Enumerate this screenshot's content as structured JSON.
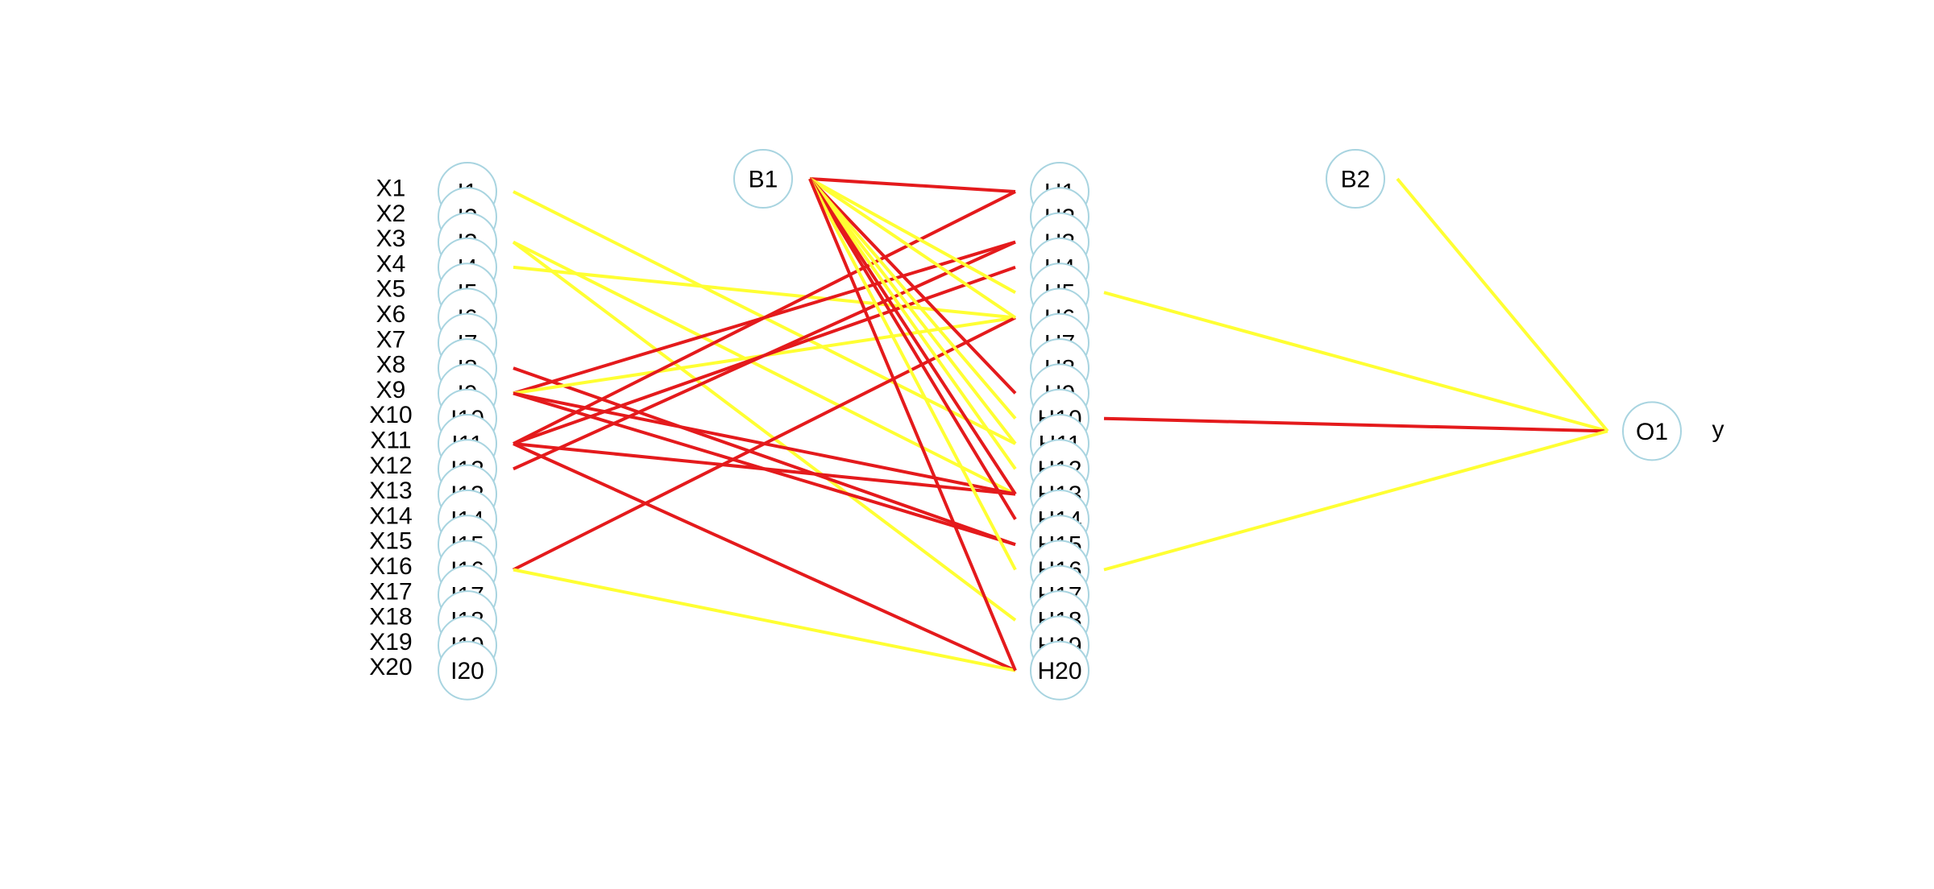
{
  "colors": {
    "positive": "#ffff33",
    "negative": "#e41a1c",
    "node_stroke": "#a8d4e0"
  },
  "input_variables": [
    "X1",
    "X2",
    "X3",
    "X4",
    "X5",
    "X6",
    "X7",
    "X8",
    "X9",
    "X10",
    "X11",
    "X12",
    "X13",
    "X14",
    "X15",
    "X16",
    "X17",
    "X18",
    "X19",
    "X20"
  ],
  "input_nodes": [
    "I1",
    "I2",
    "I3",
    "I4",
    "I5",
    "I6",
    "I7",
    "I8",
    "I9",
    "I10",
    "I11",
    "I12",
    "I13",
    "I14",
    "I15",
    "I16",
    "I17",
    "I18",
    "I19",
    "I20"
  ],
  "hidden_nodes": [
    "H1",
    "H2",
    "H3",
    "H4",
    "H5",
    "H6",
    "H7",
    "H8",
    "H9",
    "H10",
    "H11",
    "H12",
    "H13",
    "H14",
    "H15",
    "H16",
    "H17",
    "H18",
    "H19",
    "H20"
  ],
  "bias_nodes": {
    "b1": "B1",
    "b2": "B2"
  },
  "output_node": "O1",
  "output_variable": "y",
  "connections": {
    "input_hidden": [
      {
        "from": "I1",
        "to": "H11",
        "sign": "positive"
      },
      {
        "from": "I3",
        "to": "H13",
        "sign": "positive"
      },
      {
        "from": "I3",
        "to": "H18",
        "sign": "positive"
      },
      {
        "from": "I4",
        "to": "H6",
        "sign": "positive"
      },
      {
        "from": "I8",
        "to": "H15",
        "sign": "negative"
      },
      {
        "from": "I9",
        "to": "H3",
        "sign": "negative"
      },
      {
        "from": "I9",
        "to": "H6",
        "sign": "positive"
      },
      {
        "from": "I9",
        "to": "H13",
        "sign": "negative"
      },
      {
        "from": "I9",
        "to": "H15",
        "sign": "negative"
      },
      {
        "from": "I11",
        "to": "H1",
        "sign": "negative"
      },
      {
        "from": "I11",
        "to": "H4",
        "sign": "negative"
      },
      {
        "from": "I11",
        "to": "H13",
        "sign": "negative"
      },
      {
        "from": "I11",
        "to": "H20",
        "sign": "negative"
      },
      {
        "from": "I12",
        "to": "H3",
        "sign": "negative"
      },
      {
        "from": "I16",
        "to": "H6",
        "sign": "negative"
      },
      {
        "from": "I16",
        "to": "H20",
        "sign": "positive"
      }
    ],
    "bias_hidden": [
      {
        "from": "B1",
        "to": "H1",
        "sign": "negative"
      },
      {
        "from": "B1",
        "to": "H5",
        "sign": "positive"
      },
      {
        "from": "B1",
        "to": "H6",
        "sign": "positive"
      },
      {
        "from": "B1",
        "to": "H9",
        "sign": "negative"
      },
      {
        "from": "B1",
        "to": "H10",
        "sign": "positive"
      },
      {
        "from": "B1",
        "to": "H11",
        "sign": "positive"
      },
      {
        "from": "B1",
        "to": "H12",
        "sign": "positive"
      },
      {
        "from": "B1",
        "to": "H13",
        "sign": "negative"
      },
      {
        "from": "B1",
        "to": "H14",
        "sign": "negative"
      },
      {
        "from": "B1",
        "to": "H16",
        "sign": "positive"
      },
      {
        "from": "B1",
        "to": "H20",
        "sign": "negative"
      }
    ],
    "hidden_output": [
      {
        "from": "H5",
        "to": "O1",
        "sign": "positive"
      },
      {
        "from": "H10",
        "to": "O1",
        "sign": "negative"
      },
      {
        "from": "H16",
        "to": "O1",
        "sign": "positive"
      },
      {
        "from": "B2",
        "to": "O1",
        "sign": "positive"
      }
    ]
  }
}
